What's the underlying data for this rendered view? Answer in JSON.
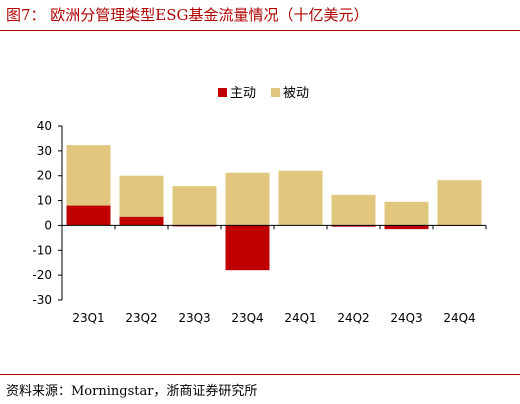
{
  "title": "图7： 欧洲分管理类型ESG基金流量情况（十亿美元）",
  "source": "资料来源：Morningstar，浙商证券研究所",
  "colors": {
    "accent": "#b00000",
    "active": "#c00000",
    "passive": "#e1c77e"
  },
  "chart_data": {
    "type": "bar",
    "stacked": true,
    "categories": [
      "23Q1",
      "23Q2",
      "23Q3",
      "23Q4",
      "24Q1",
      "24Q2",
      "24Q3",
      "24Q4"
    ],
    "series": [
      {
        "name": "主动",
        "color": "#c00000",
        "values": [
          8,
          3.5,
          -0.3,
          -18,
          0,
          -0.5,
          -1.5,
          0.2
        ]
      },
      {
        "name": "被动",
        "color": "#e1c77e",
        "values": [
          24.3,
          16.5,
          15.8,
          21.2,
          22,
          12.3,
          9.5,
          18
        ]
      }
    ],
    "yticks": [
      40,
      30,
      20,
      10,
      0,
      -10,
      -20,
      -30
    ],
    "ylim": [
      -30,
      40
    ],
    "legend_position": "top-center",
    "grid": false
  }
}
